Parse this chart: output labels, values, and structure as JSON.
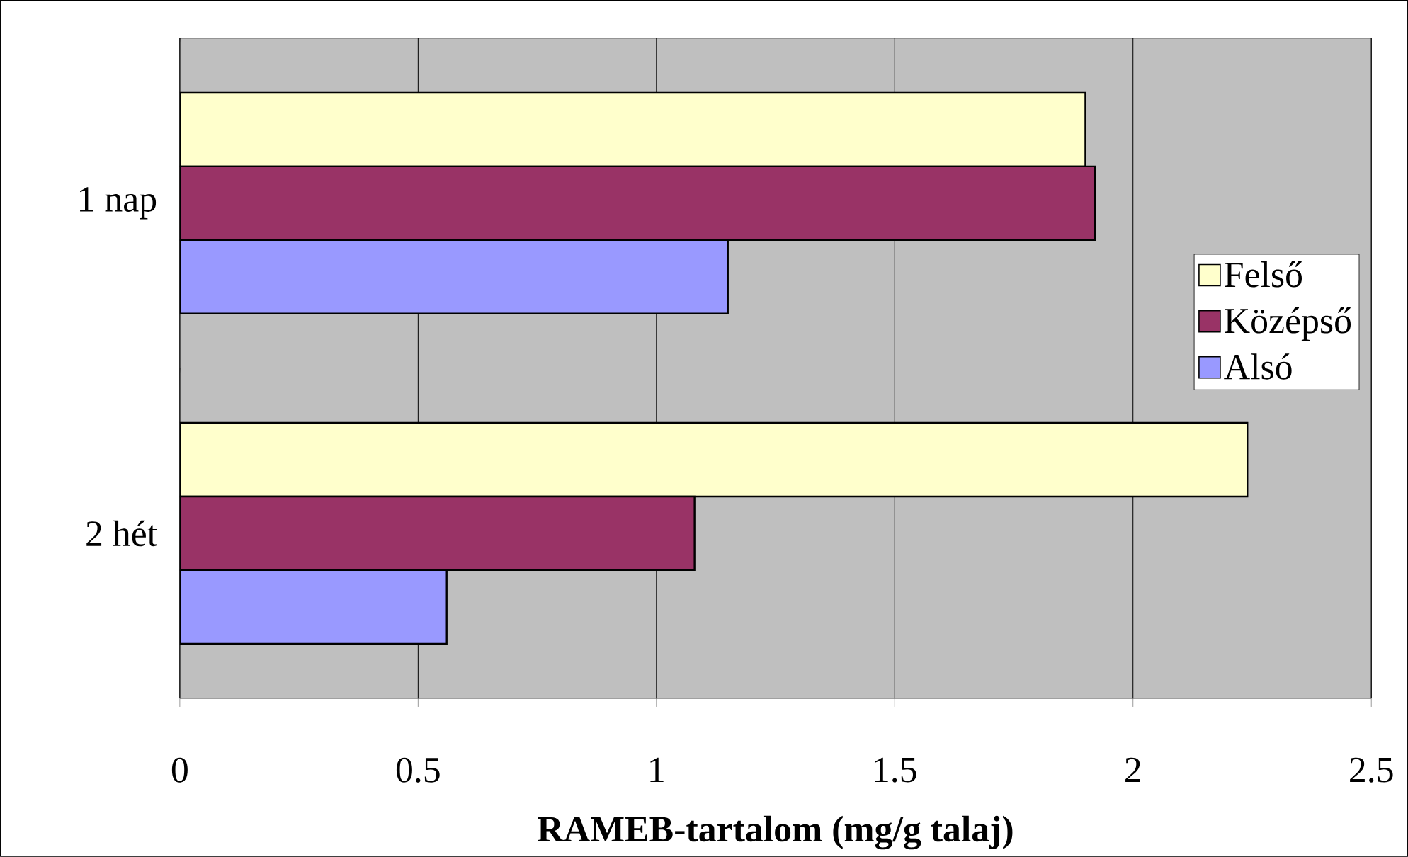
{
  "chart_data": {
    "type": "bar",
    "orientation": "horizontal",
    "xlabel": "RAMEB-tartalom (mg/g talaj)",
    "categories": [
      "1 nap",
      "2 hét"
    ],
    "series": [
      {
        "name": "Felső",
        "color": "#ffffcc",
        "values": [
          1.9,
          2.24
        ]
      },
      {
        "name": "Középső",
        "color": "#993366",
        "values": [
          1.92,
          1.08
        ]
      },
      {
        "name": "Alsó",
        "color": "#9999ff",
        "values": [
          1.15,
          0.56
        ]
      }
    ],
    "xlim": [
      0,
      2.5
    ],
    "xticks": [
      0,
      0.5,
      1,
      1.5,
      2,
      2.5
    ],
    "grid": "x",
    "legend": "right"
  }
}
